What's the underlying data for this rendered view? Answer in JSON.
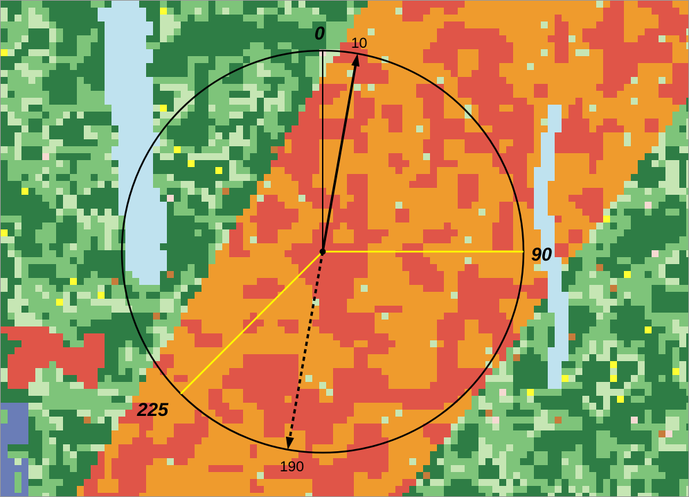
{
  "map": {
    "palette": {
      "forest_dark": "#2e7d45",
      "grass_light": "#7ec47a",
      "pale_green": "#c6e6b4",
      "developed_orange": "#ef9b2d",
      "developed_red": "#e05548",
      "water_light_blue": "#bfe2ef",
      "water_blue": "#6a7db7",
      "accent_yellow": "#ffff33",
      "accent_pink": "#f6d9d2",
      "accent_brown": "#c77b3b"
    },
    "compass": {
      "circle_color": "#000000",
      "sector_line_color": "#ffff00",
      "labels": {
        "deg_0": "0",
        "deg_10": "10",
        "deg_90": "90",
        "deg_190": "190",
        "deg_225": "225"
      },
      "solid_arrow_bearing_deg": 10,
      "dashed_arrow_bearing_deg": 190,
      "sector_boundaries_deg": [
        90,
        225
      ],
      "reference_bearing_deg": 0
    }
  }
}
